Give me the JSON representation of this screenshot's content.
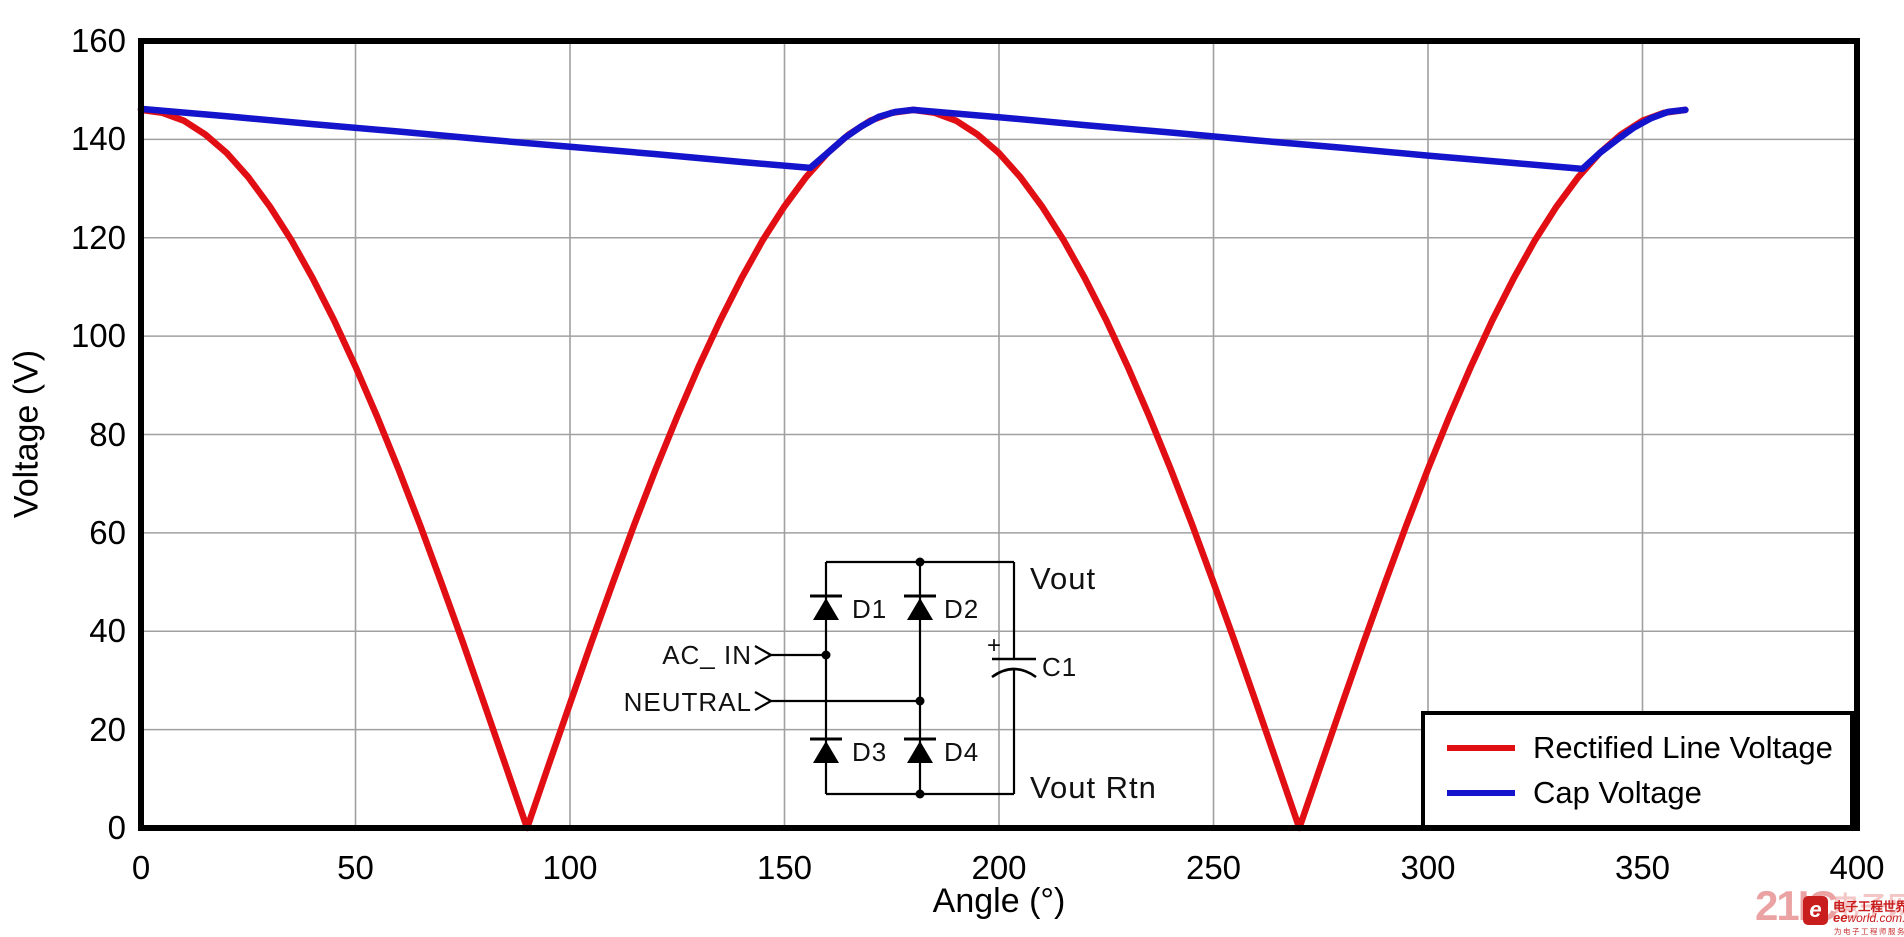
{
  "chart_data": {
    "type": "line",
    "title": "",
    "xlabel": "Angle (°)",
    "ylabel": "Voltage (V)",
    "xlim": [
      0,
      400
    ],
    "ylim": [
      0,
      160
    ],
    "x_ticks": [
      0,
      50,
      100,
      150,
      200,
      250,
      300,
      350,
      400
    ],
    "y_ticks": [
      0,
      20,
      40,
      60,
      80,
      100,
      120,
      140,
      160
    ],
    "grid": true,
    "grid_color": "#a0a0a0",
    "legend_position": "bottom-right",
    "series": [
      {
        "name": "Rectified Line Voltage",
        "color": "#e10e14",
        "points": [
          [
            0,
            146
          ],
          [
            5,
            145.4
          ],
          [
            10,
            143.8
          ],
          [
            15,
            141
          ],
          [
            20,
            137.2
          ],
          [
            25,
            132.3
          ],
          [
            30,
            126.4
          ],
          [
            35,
            119.6
          ],
          [
            40,
            111.8
          ],
          [
            45,
            103.2
          ],
          [
            50,
            93.8
          ],
          [
            55,
            83.7
          ],
          [
            60,
            73
          ],
          [
            65,
            61.7
          ],
          [
            70,
            49.9
          ],
          [
            75,
            37.8
          ],
          [
            80,
            25.3
          ],
          [
            85,
            12.7
          ],
          [
            90,
            0
          ],
          [
            95,
            12.7
          ],
          [
            100,
            25.3
          ],
          [
            105,
            37.8
          ],
          [
            110,
            49.9
          ],
          [
            115,
            61.7
          ],
          [
            120,
            73
          ],
          [
            125,
            83.7
          ],
          [
            130,
            93.8
          ],
          [
            135,
            103.2
          ],
          [
            140,
            111.8
          ],
          [
            145,
            119.6
          ],
          [
            150,
            126.4
          ],
          [
            155,
            132.3
          ],
          [
            160,
            137.2
          ],
          [
            165,
            141
          ],
          [
            170,
            143.8
          ],
          [
            175,
            145.4
          ],
          [
            180,
            146
          ],
          [
            185,
            145.4
          ],
          [
            190,
            143.8
          ],
          [
            195,
            141
          ],
          [
            200,
            137.2
          ],
          [
            205,
            132.3
          ],
          [
            210,
            126.4
          ],
          [
            215,
            119.6
          ],
          [
            220,
            111.8
          ],
          [
            225,
            103.2
          ],
          [
            230,
            93.8
          ],
          [
            235,
            83.7
          ],
          [
            240,
            73
          ],
          [
            245,
            61.7
          ],
          [
            250,
            49.9
          ],
          [
            255,
            37.8
          ],
          [
            260,
            25.3
          ],
          [
            265,
            12.7
          ],
          [
            270,
            0
          ],
          [
            275,
            12.7
          ],
          [
            280,
            25.3
          ],
          [
            285,
            37.8
          ],
          [
            290,
            49.9
          ],
          [
            295,
            61.7
          ],
          [
            300,
            73
          ],
          [
            305,
            83.7
          ],
          [
            310,
            93.8
          ],
          [
            315,
            103.2
          ],
          [
            320,
            111.8
          ],
          [
            325,
            119.6
          ],
          [
            330,
            126.4
          ],
          [
            335,
            132.3
          ],
          [
            340,
            137.2
          ],
          [
            345,
            141
          ],
          [
            350,
            143.8
          ],
          [
            355,
            145.4
          ],
          [
            360,
            146
          ]
        ]
      },
      {
        "name": "Cap Voltage",
        "color": "#1414cc",
        "points": [
          [
            0,
            146.2
          ],
          [
            20,
            144.7
          ],
          [
            40,
            143.1
          ],
          [
            60,
            141.6
          ],
          [
            80,
            140
          ],
          [
            100,
            138.5
          ],
          [
            120,
            137
          ],
          [
            140,
            135.4
          ],
          [
            156,
            134.2
          ],
          [
            160,
            137.2
          ],
          [
            164,
            140.3
          ],
          [
            168,
            142.7
          ],
          [
            172,
            144.6
          ],
          [
            176,
            145.6
          ],
          [
            180,
            146
          ],
          [
            200,
            144.5
          ],
          [
            220,
            142.9
          ],
          [
            240,
            141.4
          ],
          [
            260,
            139.8
          ],
          [
            280,
            138.3
          ],
          [
            300,
            136.7
          ],
          [
            320,
            135.2
          ],
          [
            336,
            134
          ],
          [
            340,
            137.2
          ],
          [
            344,
            139.9
          ],
          [
            348,
            142.4
          ],
          [
            352,
            144.3
          ],
          [
            356,
            145.6
          ],
          [
            360,
            146
          ]
        ]
      }
    ]
  },
  "circuit": {
    "labels": {
      "ac_in": "AC_ IN",
      "neutral": "NEUTRAL",
      "d1": "D1",
      "d2": "D2",
      "d3": "D3",
      "d4": "D4",
      "plus": "+",
      "c1": "C1",
      "vout": "Vout",
      "vout_rtn": "Vout Rtn"
    }
  },
  "watermark": {
    "brand": "21IC",
    "ghost": "电子网",
    "logo_letter": "e",
    "site": "电子工程世界",
    "domain_bold": "ee",
    "domain_rest": "world.com.cn",
    "tagline": "为电子工程师服务"
  }
}
